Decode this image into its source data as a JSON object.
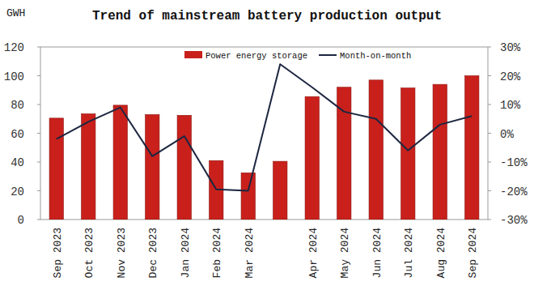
{
  "chart_data": {
    "type": "bar",
    "title": "Trend of mainstream battery production output",
    "y_label": "GWH",
    "categories": [
      "Sep 2023",
      "Oct 2023",
      "Nov 2023",
      "Dec 2023",
      "Jan 2024",
      "Feb 2024",
      "Mar 2024",
      null,
      "Apr 2024",
      "May 2024",
      "Jun 2024",
      "Jul 2024",
      "Aug 2024",
      "Sep 2024"
    ],
    "series": [
      {
        "name": "Power energy storage",
        "type": "bar",
        "color": "#c9201c",
        "values": [
          70.5,
          73.5,
          79.5,
          73,
          72.5,
          41,
          32.5,
          40.5,
          85.5,
          92,
          97,
          91.5,
          94,
          100
        ]
      },
      {
        "name": "Month-on-month",
        "type": "line",
        "color": "#1c2640",
        "axis": "y2",
        "values": [
          -2,
          4,
          9,
          -8,
          -1,
          -19.5,
          -20,
          24,
          16,
          7.5,
          5,
          -6,
          3,
          6
        ]
      }
    ],
    "ylim": [
      0,
      120
    ],
    "yticks": [
      0,
      20,
      40,
      60,
      80,
      100,
      120
    ],
    "y2lim": [
      -30,
      30
    ],
    "y2ticks": [
      {
        "value": -30,
        "label": "-30%"
      },
      {
        "value": -20,
        "label": "-20%"
      },
      {
        "value": -10,
        "label": "-10%"
      },
      {
        "value": 0,
        "label": "0%"
      },
      {
        "value": 10,
        "label": "10%"
      },
      {
        "value": 20,
        "label": "20%"
      },
      {
        "value": 30,
        "label": "30%"
      }
    ],
    "grid": false,
    "legend": "top"
  }
}
